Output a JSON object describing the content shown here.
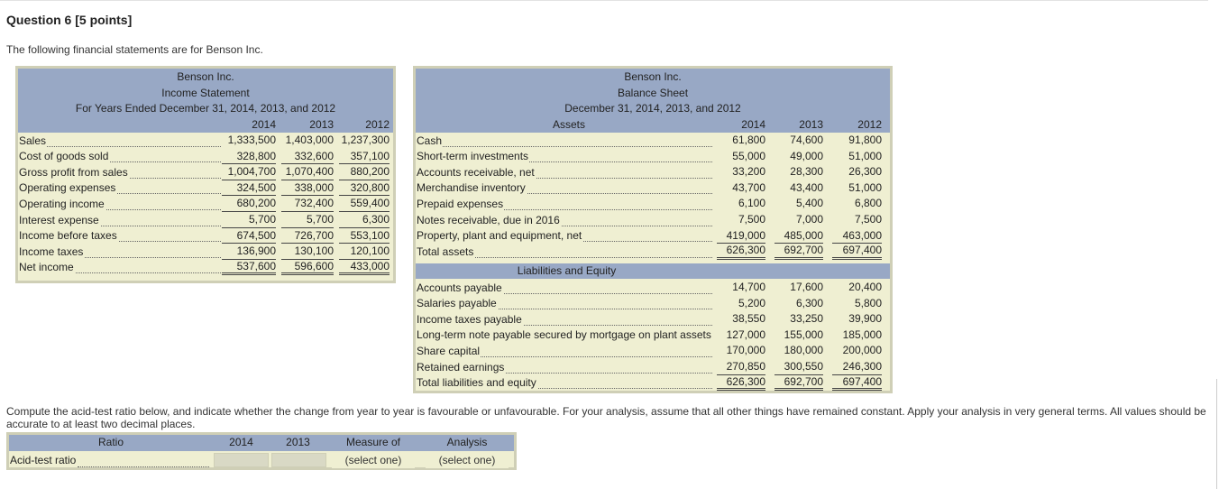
{
  "question": {
    "title": "Question 6 [5 points]",
    "intro": "The following financial statements are for Benson Inc."
  },
  "income_statement": {
    "company": "Benson Inc.",
    "title": "Income Statement",
    "period": "For Years Ended December 31, 2014, 2013, and 2012",
    "years": [
      "2014",
      "2013",
      "2012"
    ],
    "rows": [
      {
        "label": "Sales",
        "values": [
          "1,333,500",
          "1,403,000",
          "1,237,300"
        ]
      },
      {
        "label": "Cost of goods sold",
        "values": [
          "328,800",
          "332,600",
          "357,100"
        ]
      },
      {
        "label": "Gross profit from sales",
        "values": [
          "1,004,700",
          "1,070,400",
          "880,200"
        ]
      },
      {
        "label": "Operating expenses",
        "values": [
          "324,500",
          "338,000",
          "320,800"
        ]
      },
      {
        "label": "Operating income",
        "values": [
          "680,200",
          "732,400",
          "559,400"
        ]
      },
      {
        "label": "Interest expense",
        "values": [
          "5,700",
          "5,700",
          "6,300"
        ]
      },
      {
        "label": "Income before taxes",
        "values": [
          "674,500",
          "726,700",
          "553,100"
        ]
      },
      {
        "label": "Income taxes",
        "values": [
          "136,900",
          "130,100",
          "120,100"
        ]
      },
      {
        "label": "Net income",
        "values": [
          "537,600",
          "596,600",
          "433,000"
        ]
      }
    ]
  },
  "balance_sheet": {
    "company": "Benson Inc.",
    "title": "Balance Sheet",
    "period": "December 31, 2014, 2013, and 2012",
    "assets_header": "Assets",
    "years": [
      "2014",
      "2013",
      "2012"
    ],
    "assets": [
      {
        "label": "Cash",
        "values": [
          "61,800",
          "74,600",
          "91,800"
        ]
      },
      {
        "label": "Short-term investments",
        "values": [
          "55,000",
          "49,000",
          "51,000"
        ]
      },
      {
        "label": "Accounts receivable, net",
        "values": [
          "33,200",
          "28,300",
          "26,300"
        ]
      },
      {
        "label": "Merchandise inventory",
        "values": [
          "43,700",
          "43,400",
          "51,000"
        ]
      },
      {
        "label": "Prepaid expenses",
        "values": [
          "6,100",
          "5,400",
          "6,800"
        ]
      },
      {
        "label": "Notes receivable, due in 2016",
        "values": [
          "7,500",
          "7,000",
          "7,500"
        ]
      },
      {
        "label": "Property, plant and equipment, net",
        "values": [
          "419,000",
          "485,000",
          "463,000"
        ]
      },
      {
        "label": "Total assets",
        "values": [
          "626,300",
          "692,700",
          "697,400"
        ]
      }
    ],
    "liabilities_header": "Liabilities and Equity",
    "liabilities": [
      {
        "label": "Accounts payable",
        "values": [
          "14,700",
          "17,600",
          "20,400"
        ]
      },
      {
        "label": "Salaries payable",
        "values": [
          "5,200",
          "6,300",
          "5,800"
        ]
      },
      {
        "label": "Income taxes payable",
        "values": [
          "38,550",
          "33,250",
          "39,900"
        ]
      },
      {
        "label": "Long-term note payable secured by mortgage on plant assets",
        "values": [
          "127,000",
          "155,000",
          "185,000"
        ]
      },
      {
        "label": "Share capital",
        "values": [
          "170,000",
          "180,000",
          "200,000"
        ]
      },
      {
        "label": "Retained earnings",
        "values": [
          "270,850",
          "300,550",
          "246,300"
        ]
      },
      {
        "label": "Total liabilities and equity",
        "values": [
          "626,300",
          "692,700",
          "697,400"
        ]
      }
    ]
  },
  "instructions": "Compute the acid-test ratio below, and indicate whether the change from year to year is favourable or unfavourable. For your analysis, assume that all other things have remained constant. Apply your analysis in very general terms. All values should be accurate to at least two decimal places.",
  "ratio_table": {
    "headers": {
      "ratio": "Ratio",
      "y2014": "2014",
      "y2013": "2013",
      "measure": "Measure of",
      "analysis": "Analysis"
    },
    "row": {
      "label": "Acid-test ratio",
      "value_2014": "",
      "value_2013": "",
      "measure": "(select one)",
      "analysis": "(select one)"
    }
  }
}
